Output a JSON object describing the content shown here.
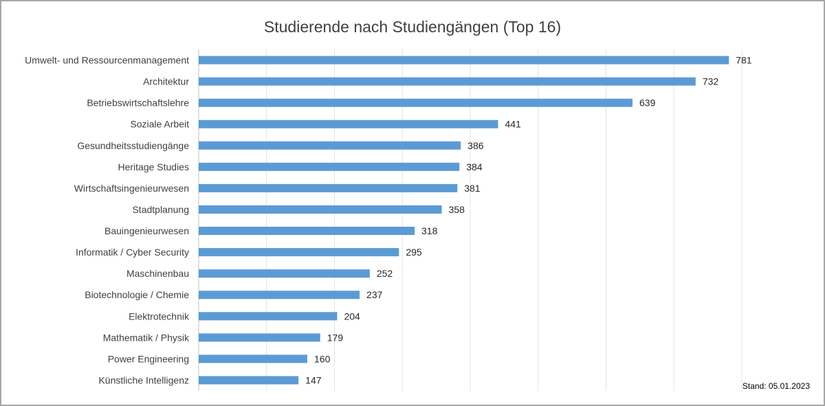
{
  "chart_data": {
    "type": "bar",
    "orientation": "horizontal",
    "title": "Studierende nach Studiengängen (Top 16)",
    "categories": [
      "Umwelt- und Ressourcenmanagement",
      "Architektur",
      "Betriebswirtschaftslehre",
      "Soziale Arbeit",
      "Gesundheitsstudiengänge",
      "Heritage Studies",
      "Wirtschaftsingenieurwesen",
      "Stadtplanung",
      "Bauingenieurwesen",
      "Informatik / Cyber Security",
      "Maschinenbau",
      "Biotechnologie / Chemie",
      "Elektrotechnik",
      "Mathematik / Physik",
      "Power Engineering",
      "Künstliche Intelligenz"
    ],
    "values": [
      781,
      732,
      639,
      441,
      386,
      384,
      381,
      358,
      318,
      295,
      252,
      237,
      204,
      179,
      160,
      147
    ],
    "xlim": [
      0,
      800
    ],
    "grid": true,
    "bar_color": "#5b9bd5",
    "data_labels": true
  },
  "footnote": "Stand: 05.01.2023"
}
